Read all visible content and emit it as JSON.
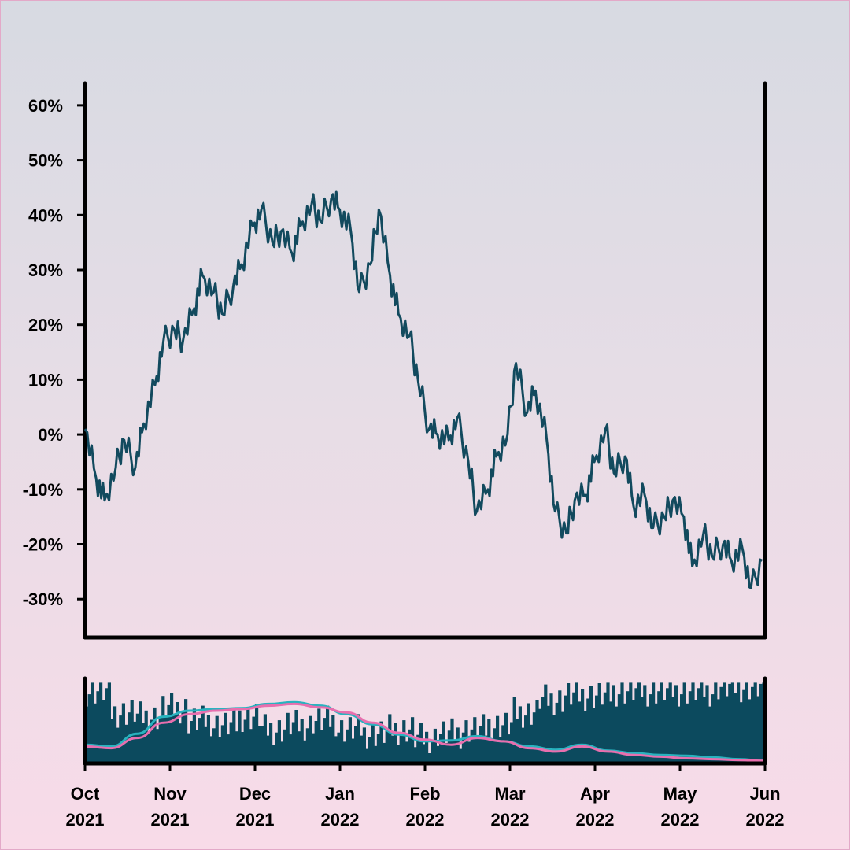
{
  "chart_data": [
    {
      "type": "line",
      "ylim": [
        -0.37,
        0.64
      ],
      "y_ticks": [
        {
          "value": 0.6,
          "label": "60%"
        },
        {
          "value": 0.5,
          "label": "50%"
        },
        {
          "value": 0.4,
          "label": "40%"
        },
        {
          "value": 0.3,
          "label": "30%"
        },
        {
          "value": 0.2,
          "label": "20%"
        },
        {
          "value": 0.1,
          "label": "10%"
        },
        {
          "value": 0.0,
          "label": "0%"
        },
        {
          "value": -0.1,
          "label": "-10%"
        },
        {
          "value": -0.2,
          "label": "-20%"
        },
        {
          "value": -0.3,
          "label": "-30%"
        }
      ],
      "x_range": [
        "2021-10-01",
        "2022-06-01"
      ],
      "grid": false,
      "colors": {
        "line": "#124a5e"
      },
      "series": [
        {
          "x": [
            "2021-10-01",
            "2021-10-05",
            "2021-10-08",
            "2021-10-12",
            "2021-10-15",
            "2021-10-19",
            "2021-10-22",
            "2021-10-26",
            "2021-10-29",
            "2021-11-02",
            "2021-11-05",
            "2021-11-09",
            "2021-11-12",
            "2021-11-16",
            "2021-11-19",
            "2021-11-23",
            "2021-11-26",
            "2021-11-30",
            "2021-12-03",
            "2021-12-07",
            "2021-12-10",
            "2021-12-14",
            "2021-12-17",
            "2021-12-21",
            "2021-12-24",
            "2021-12-28",
            "2021-12-31",
            "2022-01-04",
            "2022-01-07",
            "2022-01-11",
            "2022-01-14",
            "2022-01-18",
            "2022-01-21",
            "2022-01-25",
            "2022-01-28",
            "2022-02-01",
            "2022-02-04",
            "2022-02-08",
            "2022-02-11",
            "2022-02-15",
            "2022-02-18",
            "2022-02-22",
            "2022-02-25",
            "2022-03-01",
            "2022-03-04",
            "2022-03-08",
            "2022-03-11",
            "2022-03-15",
            "2022-03-18",
            "2022-03-22",
            "2022-03-25",
            "2022-03-29",
            "2022-04-01",
            "2022-04-05",
            "2022-04-08",
            "2022-04-12",
            "2022-04-15",
            "2022-04-19",
            "2022-04-22",
            "2022-04-26",
            "2022-04-29",
            "2022-05-03",
            "2022-05-06",
            "2022-05-10",
            "2022-05-13",
            "2022-05-17",
            "2022-05-20",
            "2022-05-24",
            "2022-05-27",
            "2022-05-31"
          ],
          "y": [
            0.01,
            -0.08,
            -0.12,
            -0.06,
            -0.01,
            -0.06,
            0.02,
            0.09,
            0.17,
            0.19,
            0.17,
            0.23,
            0.29,
            0.26,
            0.22,
            0.27,
            0.31,
            0.38,
            0.41,
            0.35,
            0.37,
            0.33,
            0.38,
            0.42,
            0.39,
            0.43,
            0.41,
            0.37,
            0.26,
            0.31,
            0.41,
            0.29,
            0.22,
            0.18,
            0.1,
            0.01,
            0.0,
            -0.01,
            0.03,
            -0.05,
            -0.14,
            -0.1,
            -0.04,
            0.0,
            0.13,
            0.04,
            0.08,
            -0.01,
            -0.14,
            -0.18,
            -0.12,
            -0.11,
            -0.05,
            0.01,
            -0.07,
            -0.04,
            -0.13,
            -0.11,
            -0.17,
            -0.15,
            -0.12,
            -0.15,
            -0.24,
            -0.18,
            -0.22,
            -0.2,
            -0.23,
            -0.21,
            -0.28,
            -0.23
          ]
        }
      ]
    },
    {
      "type": "bar",
      "x_range": [
        "2021-10-01",
        "2022-06-01"
      ],
      "x_ticks": [
        {
          "label": "Oct",
          "year": "2021"
        },
        {
          "label": "Nov",
          "year": "2021"
        },
        {
          "label": "Dec",
          "year": "2021"
        },
        {
          "label": "Jan",
          "year": "2022"
        },
        {
          "label": "Feb",
          "year": "2022"
        },
        {
          "label": "Mar",
          "year": "2022"
        },
        {
          "label": "Apr",
          "year": "2022"
        },
        {
          "label": "May",
          "year": "2022"
        },
        {
          "label": "Jun",
          "year": "2022"
        }
      ],
      "colors": {
        "bars": "#0c4a5e",
        "line_a": "#29b3bf",
        "line_b": "#e86fae"
      },
      "bar_levels": [
        0.85,
        0.6,
        0.55,
        0.65,
        0.5,
        0.45,
        0.55,
        0.4,
        0.45,
        0.5,
        0.4,
        0.35,
        0.4,
        0.3,
        0.35,
        0.4,
        0.45,
        0.6,
        0.75,
        0.8,
        0.8,
        0.85,
        0.85,
        0.85,
        0.85,
        0.9,
        0.9
      ],
      "series": [
        {
          "name": "",
          "values": [
            0.22,
            0.2,
            0.35,
            0.55,
            0.62,
            0.64,
            0.65,
            0.7,
            0.72,
            0.68,
            0.58,
            0.46,
            0.34,
            0.26,
            0.27,
            0.32,
            0.26,
            0.2,
            0.16,
            0.22,
            0.15,
            0.12,
            0.1,
            0.09,
            0.07,
            0.05,
            0.03
          ]
        },
        {
          "name": "",
          "values": [
            0.2,
            0.18,
            0.3,
            0.48,
            0.58,
            0.62,
            0.64,
            0.68,
            0.7,
            0.66,
            0.6,
            0.48,
            0.36,
            0.28,
            0.22,
            0.3,
            0.26,
            0.18,
            0.14,
            0.2,
            0.14,
            0.1,
            0.08,
            0.06,
            0.05,
            0.04,
            0.03
          ]
        }
      ]
    }
  ]
}
